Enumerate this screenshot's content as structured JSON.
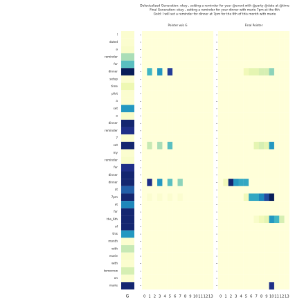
{
  "chart_data": {
    "type": "heatmap",
    "title_lines": [
      "Delexicalized Generation: okay , setting a reminder for your @event with @party @date at @time",
      "Final Generation: okay , setting a reminder for your dinner with marie 7pm at the 6th",
      "Gold: I will set a reminder for dinner at 7pm for the 6th of this month with marie"
    ],
    "colormap": "YlGnBu",
    "clim": [
      0,
      1
    ],
    "rows": [
      "!",
      "dated",
      "a",
      "reminder",
      "for",
      "dinner",
      "setup",
      "time",
      "plist",
      "a",
      "set",
      "a",
      "dinner",
      "reminder",
      "7",
      "set",
      "my",
      "reminder",
      "for",
      "dinner",
      "dinner",
      "at",
      "7pm",
      "at",
      "for",
      "the_6th",
      "of",
      "this",
      "month",
      "with",
      "marie",
      "with",
      "tomorrow",
      "on",
      "marie"
    ],
    "g_label": "G",
    "g_values": [
      0.03,
      0.03,
      0.05,
      0.3,
      0.45,
      1.0,
      0.03,
      0.12,
      0.03,
      0.03,
      0.6,
      0.05,
      0.95,
      0.9,
      0.03,
      0.95,
      0.03,
      0.05,
      0.9,
      0.95,
      0.95,
      0.75,
      0.95,
      0.65,
      0.95,
      0.95,
      0.95,
      0.6,
      0.03,
      0.25,
      0.05,
      0.03,
      0.2,
      0.03,
      0.95
    ],
    "xticks": [
      0,
      1,
      2,
      3,
      4,
      5,
      6,
      7,
      8,
      9,
      10,
      11,
      12,
      13
    ],
    "panels": [
      {
        "title": "Pointer w/o G",
        "values": [
          [
            0,
            0,
            0,
            0,
            0,
            0,
            0,
            0,
            0,
            0,
            0,
            0,
            0,
            0
          ],
          [
            0,
            0,
            0,
            0,
            0,
            0,
            0,
            0,
            0,
            0,
            0,
            0,
            0,
            0
          ],
          [
            0,
            0,
            0,
            0,
            0,
            0,
            0,
            0,
            0,
            0,
            0,
            0,
            0,
            0
          ],
          [
            0,
            0,
            0,
            0,
            0,
            0,
            0,
            0,
            0,
            0,
            0,
            0,
            0,
            0
          ],
          [
            0,
            0,
            0,
            0,
            0,
            0,
            0,
            0,
            0,
            0,
            0,
            0,
            0,
            0
          ],
          [
            0,
            0.5,
            0,
            0.6,
            0,
            0.85,
            0,
            0,
            0,
            0,
            0,
            0,
            0,
            0
          ],
          [
            0,
            0,
            0,
            0,
            0,
            0,
            0,
            0,
            0,
            0,
            0,
            0,
            0,
            0
          ],
          [
            0,
            0,
            0,
            0,
            0,
            0,
            0,
            0,
            0,
            0,
            0,
            0,
            0,
            0
          ],
          [
            0,
            0,
            0,
            0,
            0,
            0,
            0,
            0,
            0,
            0,
            0,
            0,
            0,
            0
          ],
          [
            0,
            0,
            0,
            0,
            0,
            0,
            0,
            0,
            0,
            0,
            0,
            0,
            0,
            0
          ],
          [
            0,
            0,
            0,
            0,
            0,
            0,
            0,
            0,
            0,
            0,
            0,
            0,
            0,
            0
          ],
          [
            0,
            0,
            0,
            0,
            0,
            0,
            0,
            0,
            0,
            0,
            0,
            0,
            0,
            0
          ],
          [
            0,
            0,
            0,
            0,
            0,
            0,
            0,
            0,
            0,
            0,
            0,
            0,
            0,
            0
          ],
          [
            0,
            0,
            0,
            0,
            0,
            0,
            0,
            0,
            0,
            0,
            0,
            0,
            0,
            0
          ],
          [
            0,
            0,
            0,
            0,
            0,
            0,
            0,
            0,
            0,
            0,
            0,
            0,
            0,
            0
          ],
          [
            0,
            0.25,
            0,
            0.3,
            0,
            0.45,
            0,
            0,
            0,
            0,
            0,
            0,
            0,
            0
          ],
          [
            0,
            0,
            0,
            0,
            0,
            0,
            0,
            0,
            0,
            0,
            0,
            0,
            0,
            0
          ],
          [
            0,
            0,
            0,
            0,
            0,
            0,
            0,
            0,
            0,
            0,
            0,
            0,
            0,
            0
          ],
          [
            0,
            0,
            0,
            0,
            0,
            0,
            0,
            0,
            0,
            0,
            0,
            0,
            0,
            0
          ],
          [
            0,
            0,
            0,
            0,
            0,
            0,
            0,
            0,
            0,
            0,
            0,
            0,
            0,
            0
          ],
          [
            0,
            0.9,
            0,
            0.6,
            0,
            0.45,
            0,
            0.35,
            0,
            0,
            0,
            0,
            0,
            0
          ],
          [
            0,
            0,
            0,
            0,
            0,
            0,
            0,
            0,
            0,
            0,
            0,
            0,
            0,
            0
          ],
          [
            0,
            0.03,
            0,
            0.03,
            0,
            0.03,
            0,
            0.03,
            0,
            0,
            0,
            0,
            0,
            0
          ],
          [
            0,
            0,
            0,
            0,
            0,
            0,
            0,
            0,
            0,
            0,
            0,
            0,
            0,
            0
          ],
          [
            0,
            0,
            0,
            0,
            0,
            0,
            0,
            0,
            0,
            0,
            0,
            0,
            0,
            0
          ],
          [
            0,
            0,
            0,
            0,
            0,
            0,
            0,
            0,
            0,
            0,
            0,
            0,
            0,
            0
          ],
          [
            0,
            0,
            0,
            0,
            0,
            0,
            0,
            0,
            0,
            0,
            0,
            0,
            0,
            0
          ],
          [
            0,
            0,
            0,
            0,
            0,
            0,
            0,
            0,
            0,
            0,
            0,
            0,
            0,
            0
          ],
          [
            0,
            0,
            0,
            0,
            0,
            0,
            0,
            0,
            0,
            0,
            0,
            0,
            0,
            0
          ],
          [
            0,
            0,
            0,
            0,
            0,
            0,
            0,
            0,
            0,
            0,
            0,
            0,
            0,
            0
          ],
          [
            0,
            0,
            0,
            0,
            0,
            0,
            0,
            0,
            0,
            0,
            0,
            0,
            0,
            0
          ],
          [
            0,
            0,
            0,
            0,
            0,
            0,
            0,
            0,
            0,
            0,
            0,
            0,
            0,
            0
          ],
          [
            0,
            0,
            0,
            0,
            0,
            0,
            0,
            0,
            0,
            0,
            0,
            0,
            0,
            0
          ],
          [
            0,
            0,
            0,
            0,
            0,
            0,
            0,
            0,
            0,
            0,
            0,
            0,
            0,
            0
          ],
          [
            0,
            0,
            0,
            0,
            0,
            0,
            0,
            0,
            0,
            0,
            0,
            0,
            0,
            0
          ]
        ]
      },
      {
        "title": "Final Pointer",
        "values": [
          [
            0,
            0,
            0,
            0,
            0,
            0,
            0,
            0,
            0,
            0,
            0,
            0,
            0,
            0
          ],
          [
            0,
            0,
            0,
            0,
            0,
            0,
            0,
            0,
            0,
            0,
            0,
            0,
            0,
            0
          ],
          [
            0,
            0,
            0,
            0,
            0,
            0,
            0,
            0,
            0,
            0,
            0,
            0,
            0,
            0
          ],
          [
            0,
            0,
            0,
            0,
            0,
            0,
            0,
            0,
            0,
            0,
            0,
            0,
            0,
            0
          ],
          [
            0,
            0,
            0,
            0,
            0,
            0,
            0,
            0,
            0,
            0,
            0,
            0,
            0,
            0
          ],
          [
            0,
            0,
            0,
            0,
            0,
            0.1,
            0.15,
            0.15,
            0.2,
            0.2,
            0.35,
            0,
            0,
            0
          ],
          [
            0,
            0,
            0,
            0,
            0,
            0,
            0,
            0,
            0,
            0,
            0,
            0,
            0,
            0
          ],
          [
            0,
            0,
            0,
            0,
            0,
            0,
            0,
            0,
            0,
            0,
            0,
            0,
            0,
            0
          ],
          [
            0,
            0,
            0,
            0,
            0,
            0,
            0,
            0,
            0,
            0,
            0,
            0,
            0,
            0
          ],
          [
            0,
            0,
            0,
            0,
            0,
            0,
            0,
            0,
            0,
            0,
            0,
            0,
            0,
            0
          ],
          [
            0,
            0,
            0,
            0,
            0,
            0,
            0,
            0,
            0,
            0,
            0,
            0,
            0,
            0
          ],
          [
            0,
            0,
            0,
            0,
            0,
            0,
            0,
            0,
            0,
            0,
            0,
            0,
            0,
            0
          ],
          [
            0,
            0,
            0,
            0,
            0,
            0,
            0,
            0,
            0,
            0,
            0,
            0,
            0,
            0
          ],
          [
            0,
            0,
            0,
            0,
            0,
            0,
            0,
            0,
            0,
            0,
            0,
            0,
            0,
            0
          ],
          [
            0,
            0,
            0,
            0,
            0,
            0,
            0,
            0,
            0,
            0,
            0,
            0,
            0,
            0
          ],
          [
            0,
            0,
            0,
            0,
            0,
            0,
            0,
            0.15,
            0.2,
            0.15,
            0.6,
            0,
            0,
            0
          ],
          [
            0,
            0,
            0,
            0,
            0,
            0,
            0,
            0,
            0,
            0,
            0,
            0,
            0,
            0
          ],
          [
            0,
            0,
            0,
            0,
            0,
            0,
            0,
            0,
            0,
            0,
            0,
            0,
            0,
            0
          ],
          [
            0,
            0,
            0,
            0,
            0,
            0,
            0,
            0,
            0,
            0,
            0,
            0,
            0,
            0
          ],
          [
            0,
            0,
            0,
            0,
            0,
            0,
            0,
            0,
            0,
            0,
            0,
            0,
            0,
            0
          ],
          [
            0,
            0.1,
            0.95,
            0.6,
            0.55,
            0.55,
            0,
            0,
            0,
            0,
            0,
            0,
            0,
            0
          ],
          [
            0,
            0,
            0,
            0,
            0,
            0,
            0,
            0,
            0,
            0,
            0,
            0,
            0,
            0
          ],
          [
            0,
            0,
            0,
            0,
            0,
            0.1,
            0.55,
            0.55,
            0.65,
            0.8,
            1.0,
            0,
            0,
            0
          ],
          [
            0,
            0,
            0,
            0,
            0,
            0,
            0,
            0,
            0,
            0,
            0,
            0,
            0,
            0
          ],
          [
            0,
            0,
            0,
            0,
            0,
            0,
            0,
            0,
            0,
            0,
            0,
            0,
            0,
            0
          ],
          [
            0,
            0,
            0,
            0,
            0,
            0,
            0,
            0.05,
            0.1,
            0.15,
            0.6,
            0.5,
            0.2,
            0
          ],
          [
            0,
            0,
            0,
            0,
            0,
            0,
            0,
            0,
            0,
            0,
            0,
            0,
            0,
            0
          ],
          [
            0,
            0,
            0,
            0,
            0,
            0,
            0,
            0,
            0,
            0,
            0,
            0,
            0,
            0
          ],
          [
            0,
            0,
            0,
            0,
            0,
            0,
            0,
            0,
            0,
            0,
            0,
            0,
            0,
            0
          ],
          [
            0,
            0,
            0,
            0,
            0,
            0,
            0,
            0,
            0,
            0,
            0,
            0,
            0,
            0
          ],
          [
            0,
            0,
            0,
            0,
            0,
            0,
            0,
            0,
            0,
            0,
            0,
            0,
            0,
            0
          ],
          [
            0,
            0,
            0,
            0,
            0,
            0,
            0,
            0,
            0,
            0,
            0,
            0,
            0,
            0
          ],
          [
            0,
            0,
            0,
            0,
            0,
            0,
            0,
            0,
            0,
            0,
            0,
            0,
            0,
            0
          ],
          [
            0,
            0,
            0,
            0,
            0,
            0,
            0,
            0,
            0,
            0,
            0,
            0,
            0,
            0
          ],
          [
            0,
            0,
            0,
            0,
            0,
            0,
            0,
            0,
            0,
            0,
            0.9,
            0,
            0,
            0
          ]
        ]
      }
    ]
  }
}
